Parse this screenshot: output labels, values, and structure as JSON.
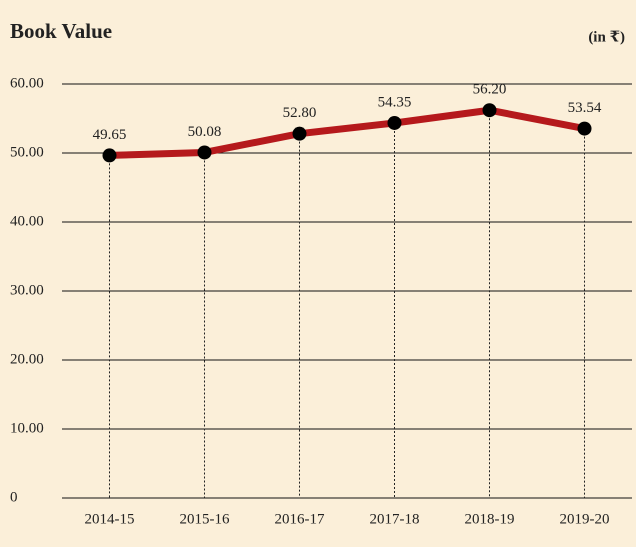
{
  "chart_data": {
    "type": "line",
    "title": "Book Value",
    "unit_label": "(in ₹)",
    "categories": [
      "2014-15",
      "2015-16",
      "2016-17",
      "2017-18",
      "2018-19",
      "2019-20"
    ],
    "values": [
      49.65,
      50.08,
      52.8,
      54.35,
      56.2,
      53.54
    ],
    "value_labels": [
      "49.65",
      "50.08",
      "52.80",
      "54.35",
      "56.20",
      "53.54"
    ],
    "color": "#b5191c",
    "marker_color": "#000000",
    "ylim": [
      0,
      60
    ],
    "yticks": [
      0,
      {
        "value": 10,
        "label": "10.00"
      },
      {
        "value": 20,
        "label": "20.00"
      },
      {
        "value": 30,
        "label": "30.00"
      },
      {
        "value": 40,
        "label": "40.00"
      },
      {
        "value": 50,
        "label": "50.00"
      },
      {
        "value": 60,
        "label": "60.00"
      }
    ],
    "grid": true
  }
}
